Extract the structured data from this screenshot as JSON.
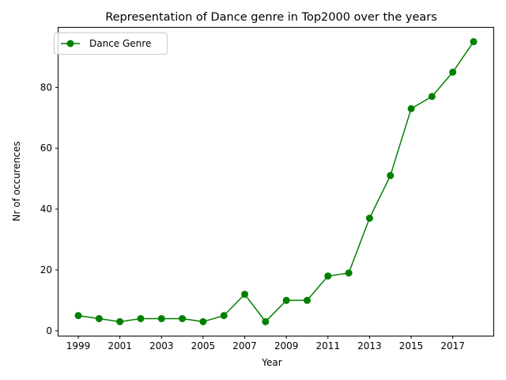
{
  "chart_data": {
    "type": "line",
    "title": "Representation of Dance genre in Top2000 over the years",
    "xlabel": "Year",
    "ylabel": "Nr of occurences",
    "x": [
      1999,
      2000,
      2001,
      2002,
      2003,
      2004,
      2005,
      2006,
      2007,
      2008,
      2009,
      2010,
      2011,
      2012,
      2013,
      2014,
      2015,
      2016,
      2017,
      2018
    ],
    "series": [
      {
        "name": "Dance Genre",
        "color": "#008000",
        "marker": "circle",
        "values": [
          5,
          4,
          3,
          4,
          4,
          4,
          3,
          5,
          12,
          3,
          10,
          10,
          18,
          19,
          37,
          51,
          73,
          77,
          85,
          95
        ]
      }
    ],
    "xticks": [
      1999,
      2001,
      2003,
      2005,
      2007,
      2009,
      2011,
      2013,
      2015,
      2017
    ],
    "yticks": [
      0,
      20,
      40,
      60,
      80
    ],
    "xlim": [
      1998.05,
      2018.95
    ],
    "ylim": [
      -1.6,
      99.6
    ],
    "grid": false,
    "legend_position": "upper left"
  }
}
